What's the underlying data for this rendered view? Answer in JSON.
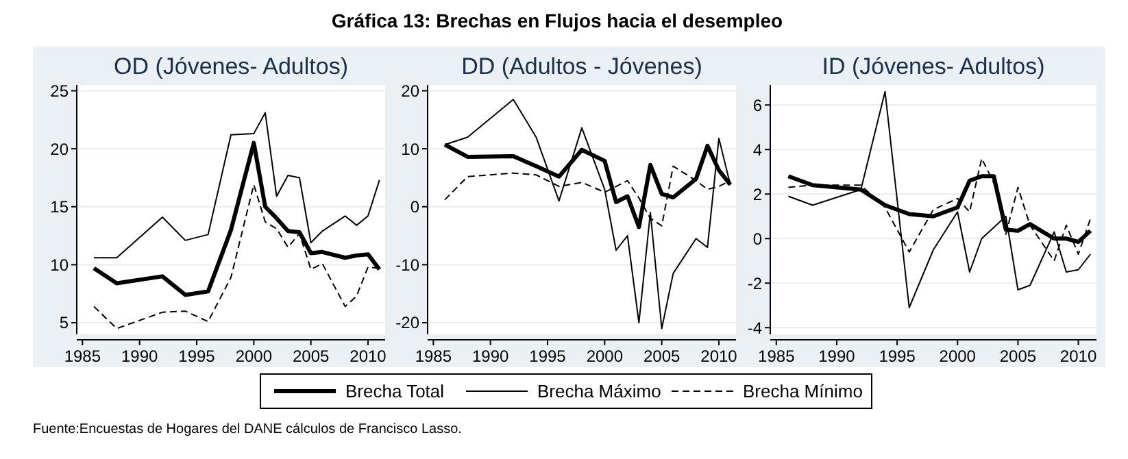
{
  "chart_data": [
    {
      "type": "line",
      "subtitle": "OD (Jóvenes- Adultos)",
      "annotations": [
        "Fuente:Encuestas de Hogares del DANE cálculos de Francisco Lasso."
      ],
      "legend": "bottom",
      "grid": "y",
      "x": [
        1986,
        1988,
        1992,
        1994,
        1996,
        1998,
        2000,
        2001,
        2002,
        2003,
        2004,
        2005,
        2006,
        2008,
        2009,
        2010,
        2011
      ],
      "xlim": [
        1984.5,
        2011.5
      ],
      "xticks": [
        1985,
        1990,
        1995,
        2000,
        2005,
        2010
      ],
      "ylim": [
        4,
        25.5
      ],
      "yticks": [
        5,
        10,
        15,
        20,
        25
      ],
      "series": [
        {
          "name": "Brecha Total",
          "color": "#000000",
          "line_style": "solid",
          "values": [
            9.7,
            8.4,
            9.0,
            7.4,
            7.7,
            13.0,
            20.5,
            15.0,
            14.0,
            12.9,
            12.8,
            11.0,
            11.1,
            10.6,
            10.8,
            10.9,
            9.6
          ]
        },
        {
          "name": "Brecha Máximo",
          "color": "#000000",
          "line_style": "solid",
          "values": [
            10.6,
            10.6,
            14.1,
            12.1,
            12.6,
            21.2,
            21.3,
            23.1,
            15.9,
            17.7,
            17.5,
            11.9,
            12.9,
            14.2,
            13.4,
            14.2,
            17.3
          ]
        },
        {
          "name": "Brecha Mínimo",
          "color": "#000000",
          "line_style": "dashed",
          "values": [
            6.4,
            4.5,
            5.9,
            6.0,
            5.1,
            8.9,
            16.9,
            13.7,
            13.1,
            11.5,
            12.7,
            9.6,
            10.1,
            6.4,
            7.3,
            9.8,
            9.7
          ]
        }
      ]
    },
    {
      "type": "line",
      "title": "Gráfica 13: Brechas en Flujos hacia el desempleo",
      "subtitle": "DD (Adultos - Jóvenes)",
      "grid": "y",
      "x": [
        1986,
        1988,
        1992,
        1994,
        1996,
        1998,
        2000,
        2001,
        2002,
        2003,
        2004,
        2005,
        2006,
        2008,
        2009,
        2010,
        2011
      ],
      "xlim": [
        1984.5,
        2011.5
      ],
      "xticks": [
        1985,
        1990,
        1995,
        2000,
        2005,
        2010
      ],
      "ylim": [
        -22,
        21
      ],
      "yticks": [
        -20,
        -10,
        0,
        10,
        20
      ],
      "series": [
        {
          "color": "#000000",
          "line_style": "solid",
          "values": [
            10.7,
            8.6,
            8.7,
            7.0,
            5.2,
            9.8,
            7.9,
            0.8,
            1.8,
            -3.5,
            7.2,
            2.2,
            1.6,
            4.8,
            10.5,
            6.3,
            3.8
          ]
        },
        {
          "color": "#000000",
          "line_style": "solid",
          "values": [
            10.7,
            12.0,
            18.5,
            12.0,
            1.0,
            13.6,
            3.0,
            -7.5,
            -5.0,
            -20,
            -1,
            -21,
            -11.5,
            -5.5,
            -7,
            11.8,
            3.8
          ]
        },
        {
          "color": "#000000",
          "line_style": "dashed",
          "values": [
            1.2,
            5.2,
            5.8,
            5.5,
            3.5,
            4.2,
            2.5,
            3.5,
            4.5,
            1.5,
            -2,
            -3.3,
            7,
            4.5,
            3,
            3.5,
            4.5
          ]
        }
      ]
    },
    {
      "type": "line",
      "subtitle": "ID (Jóvenes- Adultos)",
      "grid": "y",
      "x": [
        1986,
        1988,
        1992,
        1994,
        1996,
        1998,
        2000,
        2001,
        2002,
        2003,
        2004,
        2005,
        2006,
        2008,
        2009,
        2010,
        2011
      ],
      "xlim": [
        1984.5,
        2011.5
      ],
      "xticks": [
        1985,
        1990,
        1995,
        2000,
        2005,
        2010
      ],
      "ylim": [
        -4.3,
        6.9
      ],
      "yticks": [
        -4,
        -2,
        0,
        2,
        4,
        6
      ],
      "series": [
        {
          "color": "#000000",
          "line_style": "solid",
          "values": [
            2.8,
            2.4,
            2.2,
            1.5,
            1.1,
            1.0,
            1.4,
            2.6,
            2.8,
            2.8,
            0.4,
            0.35,
            0.65,
            0.0,
            0.0,
            -0.15,
            0.35
          ]
        },
        {
          "color": "#000000",
          "line_style": "solid",
          "values": [
            1.9,
            1.5,
            2.2,
            6.6,
            -3.1,
            -0.5,
            1.2,
            -1.5,
            0.0,
            0.5,
            1.0,
            -2.3,
            -2.1,
            0.3,
            -1.5,
            -1.4,
            -0.7
          ]
        },
        {
          "color": "#000000",
          "line_style": "dashed",
          "values": [
            2.3,
            2.4,
            2.4,
            1.4,
            -0.6,
            1.3,
            1.8,
            1.2,
            3.6,
            2.5,
            0.2,
            2.3,
            0.6,
            -1.0,
            0.6,
            -0.7,
            0.9
          ]
        }
      ]
    }
  ]
}
